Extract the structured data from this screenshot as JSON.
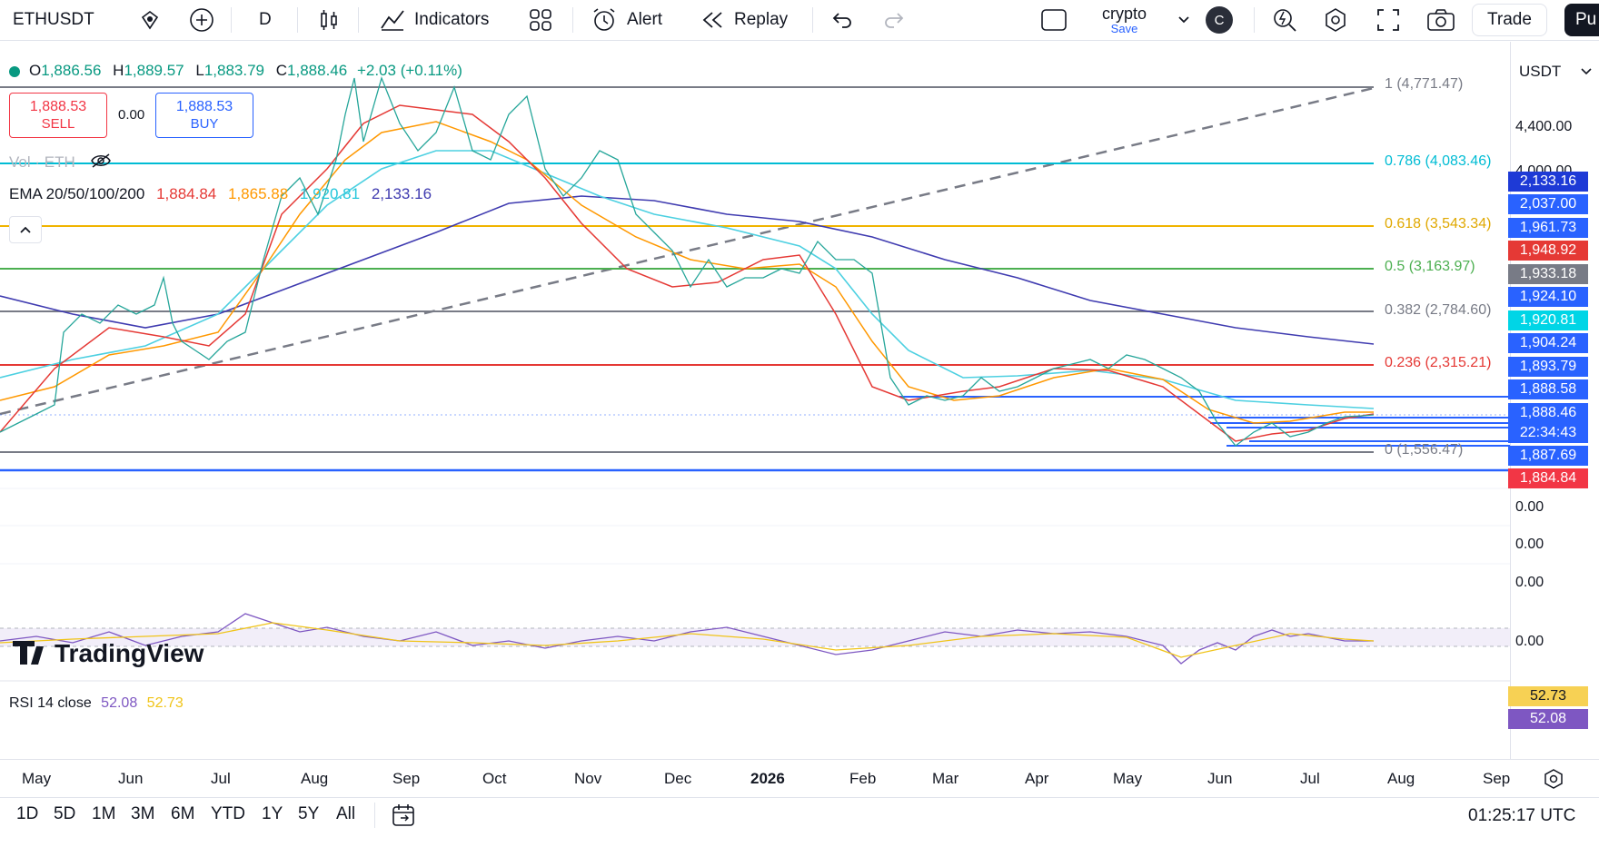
{
  "toolbar": {
    "symbol": "ETHUSDT",
    "interval": "D",
    "indicators_label": "Indicators",
    "alert_label": "Alert",
    "replay_label": "Replay",
    "layout_name": "crypto",
    "layout_save": "Save",
    "avatar_letter": "C",
    "trade_label": "Trade",
    "publish_label": "Pu"
  },
  "legend": {
    "ohlc": {
      "o_label": "O",
      "o": "1,886.56",
      "h_label": "H",
      "h": "1,889.57",
      "l_label": "L",
      "l": "1,883.79",
      "c_label": "C",
      "c": "1,888.46",
      "change": "+2.03 (+0.11%)"
    },
    "sell_price": "1,888.53",
    "sell_label": "SELL",
    "spread": "0.00",
    "buy_price": "1,888.53",
    "buy_label": "BUY",
    "vol_label": "Vol · ETH",
    "ema_label": "EMA 20/50/100/200",
    "ema_values": [
      "1,884.84",
      "1,865.88",
      "1,920.81",
      "2,133.16"
    ],
    "rsi_label": "RSI 14 close",
    "rsi_values": [
      "52.08",
      "52.73"
    ]
  },
  "fib_levels": [
    {
      "label": "1 (4,771.47)",
      "color": "#787b86"
    },
    {
      "label": "0.786 (4,083.46)",
      "color": "#00bcd4"
    },
    {
      "label": "0.618 (3,543.34)",
      "color": "#f0b400"
    },
    {
      "label": "0.5 (3,163.97)",
      "color": "#4caf50"
    },
    {
      "label": "0.382 (2,784.60)",
      "color": "#787b86"
    },
    {
      "label": "0.236 (2,315.21)",
      "color": "#e53935"
    },
    {
      "label": "0 (1,556.47)",
      "color": "#787b86"
    }
  ],
  "price_axis": {
    "currency": "USDT",
    "ticks": [
      "4,400.00",
      "4,000.00"
    ],
    "labels": [
      {
        "value": "2,133.16",
        "color": "#1e3ad6"
      },
      {
        "value": "2,037.00",
        "color": "#2962ff"
      },
      {
        "value": "1,961.73",
        "color": "#2962ff"
      },
      {
        "value": "1,948.92",
        "color": "#e53935"
      },
      {
        "value": "1,933.18",
        "color": "#787b86"
      },
      {
        "value": "1,924.10",
        "color": "#2962ff"
      },
      {
        "value": "1,920.81",
        "color": "#00d5e6"
      },
      {
        "value": "1,904.24",
        "color": "#2962ff"
      },
      {
        "value": "1,893.79",
        "color": "#2962ff"
      },
      {
        "value": "1,888.58",
        "color": "#2962ff"
      },
      {
        "value": "1,888.46",
        "color": "#2962ff"
      },
      {
        "value": "22:34:43",
        "color": "#2962ff"
      },
      {
        "value": "1,887.69",
        "color": "#2962ff"
      },
      {
        "value": "1,884.84",
        "color": "#f23645"
      }
    ],
    "zero_ticks": [
      "0.00",
      "0.00",
      "0.00",
      "0.00"
    ],
    "rsi_labels": [
      {
        "value": "52.73",
        "color": "#f0c419"
      },
      {
        "value": "52.08",
        "color": "#7e57c2"
      }
    ]
  },
  "time_axis": [
    "May",
    "Jun",
    "Jul",
    "Aug",
    "Sep",
    "Oct",
    "Nov",
    "Dec",
    "2026",
    "Feb",
    "Mar",
    "Apr",
    "May",
    "Jun",
    "Jul",
    "Aug",
    "Sep"
  ],
  "watermark": "TradingView",
  "bottom": {
    "ranges": [
      "1D",
      "5D",
      "1M",
      "3M",
      "6M",
      "YTD",
      "1Y",
      "5Y",
      "All"
    ],
    "clock": "01:25:17 UTC"
  },
  "chart_data": {
    "type": "line",
    "symbol": "ETHUSDT",
    "x": [
      "May",
      "Jun",
      "Jul",
      "Aug",
      "Sep",
      "Oct",
      "Nov",
      "Dec",
      "2026",
      "Feb",
      "Mar",
      "Apr",
      "May",
      "Jun",
      "Jul",
      "Aug"
    ],
    "series": [
      {
        "name": "",
        "values": [
          1800,
          2500,
          2600,
          3600,
          4400,
          4300,
          3900,
          3000,
          3050,
          2300,
          2000,
          2400,
          2350,
          1600,
          1850,
          1888
        ]
      }
    ],
    "fib_retracement": [
      {
        "ratio": 1,
        "price": 4771.47
      },
      {
        "ratio": 0.786,
        "price": 4083.46
      },
      {
        "ratio": 0.618,
        "price": 3543.34
      },
      {
        "ratio": 0.5,
        "price": 3163.97
      },
      {
        "ratio": 0.382,
        "price": 2784.6
      },
      {
        "ratio": 0.236,
        "price": 2315.21
      },
      {
        "ratio": 0,
        "price": 1556.47
      }
    ],
    "ylim": [
      1300,
      4900
    ]
  }
}
